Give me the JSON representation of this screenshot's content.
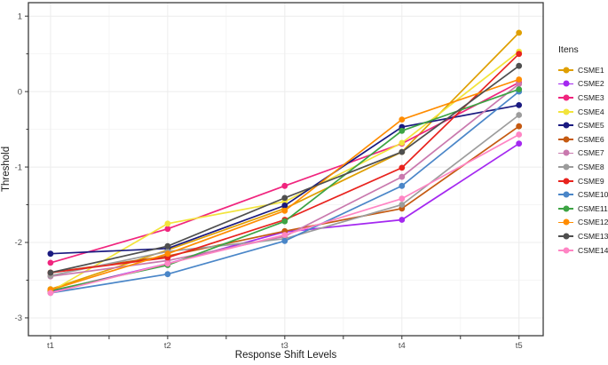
{
  "figure": {
    "background": "#FFFFFF",
    "panel_border_color": "#3b3b3b",
    "grid_major_color": "#ececec",
    "grid_minor_color": "#f5f5f5",
    "tick_color": "#333333",
    "tick_label_color": "#4d4d4d",
    "axis_title_color": "#1a1a1a"
  },
  "chart_data": {
    "type": "line",
    "title": "",
    "xlabel": "Response Shift Levels",
    "ylabel": "Threshold",
    "categories": [
      "t1",
      "t2",
      "t3",
      "t4",
      "t5"
    ],
    "y_ticks": [
      1,
      0,
      -1,
      -2,
      -3
    ],
    "ylim": [
      -3.25,
      1.18
    ],
    "grid": true,
    "legend_position": "right",
    "legend_title": "Itens",
    "series": [
      {
        "name": "CSME1",
        "color": "#df9f00",
        "values": [
          -2.62,
          -2.1,
          -1.55,
          -0.8,
          0.78
        ]
      },
      {
        "name": "CSME2",
        "color": "#a428f0",
        "values": [
          -2.65,
          -2.28,
          -1.86,
          -1.7,
          -0.69
        ]
      },
      {
        "name": "CSME3",
        "color": "#f0257e",
        "values": [
          -2.27,
          -1.82,
          -1.25,
          -0.69,
          0.12
        ]
      },
      {
        "name": "CSME4",
        "color": "#f2e43c",
        "values": [
          -2.65,
          -1.75,
          -1.46,
          -0.68,
          0.53
        ]
      },
      {
        "name": "CSME5",
        "color": "#1a1a80",
        "values": [
          -2.15,
          -2.08,
          -1.51,
          -0.47,
          -0.18
        ]
      },
      {
        "name": "CSME6",
        "color": "#c55a11",
        "values": [
          -2.4,
          -2.18,
          -1.85,
          -1.55,
          -0.46
        ]
      },
      {
        "name": "CSME7",
        "color": "#c979ae",
        "values": [
          -2.45,
          -2.24,
          -1.92,
          -1.13,
          0.1
        ]
      },
      {
        "name": "CSME8",
        "color": "#9c9c9c",
        "values": [
          -2.44,
          -2.12,
          -1.95,
          -1.5,
          -0.31
        ]
      },
      {
        "name": "CSME9",
        "color": "#e8231e",
        "values": [
          -2.4,
          -2.2,
          -1.7,
          -1.01,
          0.5
        ]
      },
      {
        "name": "CSME10",
        "color": "#4a86c8",
        "values": [
          -2.67,
          -2.42,
          -1.98,
          -1.25,
          0.0
        ]
      },
      {
        "name": "CSME11",
        "color": "#3da444",
        "values": [
          -2.64,
          -2.3,
          -1.72,
          -0.52,
          0.03
        ]
      },
      {
        "name": "CSME12",
        "color": "#ff8c00",
        "values": [
          -2.63,
          -2.15,
          -1.58,
          -0.37,
          0.16
        ]
      },
      {
        "name": "CSME13",
        "color": "#4f4f4f",
        "values": [
          -2.4,
          -2.05,
          -1.41,
          -0.8,
          0.34
        ]
      },
      {
        "name": "CSME14",
        "color": "#ff85c4",
        "values": [
          -2.67,
          -2.28,
          -1.9,
          -1.42,
          -0.57
        ]
      }
    ]
  }
}
